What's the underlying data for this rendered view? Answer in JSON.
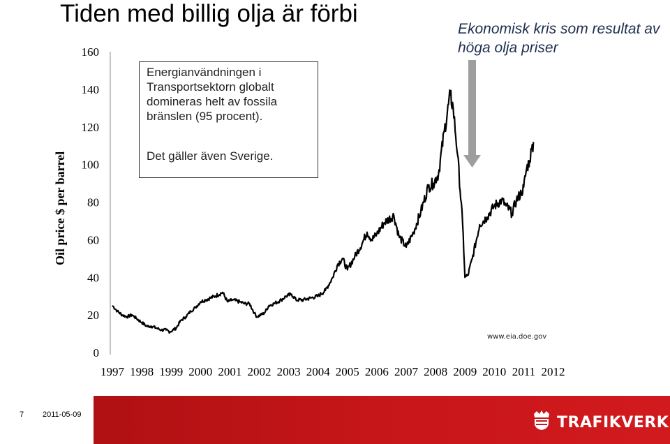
{
  "slide": {
    "title": "Tiden med billig olja är förbi",
    "callout": "Ekonomisk kris som resultat av höga olja priser",
    "annotation_p1": "Energianvändningen i Transportsektorn globalt domineras helt av fossila bränslen (95 procent).",
    "annotation_p2": "Det gäller även Sverige.",
    "source": "www.eia.doe.gov",
    "page_number": "7",
    "date": "2011-05-09",
    "logo_text": "TRAFIKVERKET",
    "logo_icon": "crown-shield-icon",
    "colors": {
      "line": "#000000",
      "arrow": "#999999",
      "footer": "#c8161a"
    }
  },
  "chart_data": {
    "type": "line",
    "ylabel": "Oil price $ per barrel",
    "xlabel": "",
    "ylim": [
      0,
      160
    ],
    "yticks": [
      "0",
      "20",
      "40",
      "60",
      "80",
      "100",
      "120",
      "140",
      "160"
    ],
    "categories": [
      "1997",
      "1998",
      "1999",
      "2000",
      "2001",
      "2002",
      "2003",
      "2004",
      "2005",
      "2006",
      "2007",
      "2008",
      "2009",
      "2010",
      "2011",
      "2012"
    ],
    "grid": false,
    "x": [
      1997.0,
      1997.17,
      1997.33,
      1997.5,
      1997.67,
      1997.83,
      1998.0,
      1998.17,
      1998.33,
      1998.5,
      1998.67,
      1998.83,
      1998.96,
      1999.17,
      1999.33,
      1999.5,
      1999.67,
      1999.83,
      2000.0,
      2000.17,
      2000.33,
      2000.5,
      2000.75,
      2000.92,
      2001.08,
      2001.33,
      2001.5,
      2001.67,
      2001.83,
      2001.92,
      2002.17,
      2002.33,
      2002.5,
      2002.75,
      2002.92,
      2003.1,
      2003.25,
      2003.5,
      2003.75,
      2004.0,
      2004.25,
      2004.5,
      2004.67,
      2004.83,
      2005.0,
      2005.25,
      2005.5,
      2005.67,
      2005.83,
      2006.0,
      2006.25,
      2006.58,
      2006.75,
      2007.0,
      2007.25,
      2007.5,
      2007.75,
      2007.92,
      2008.1,
      2008.3,
      2008.5,
      2008.6,
      2008.75,
      2008.92,
      2009.0,
      2009.1,
      2009.25,
      2009.5,
      2009.75,
      2010.0,
      2010.25,
      2010.4,
      2010.6,
      2010.75,
      2010.92,
      2011.0,
      2011.1,
      2011.2,
      2011.27,
      2011.33
    ],
    "values": [
      25,
      22,
      20,
      19,
      20,
      18,
      16,
      14,
      14,
      13,
      12,
      12,
      11,
      13,
      17,
      19,
      22,
      24,
      27,
      28,
      29,
      30,
      32,
      27,
      28,
      27,
      26,
      26,
      21,
      19,
      21,
      25,
      26,
      28,
      30,
      31,
      28,
      28,
      29,
      30,
      33,
      40,
      47,
      50,
      44,
      51,
      58,
      64,
      60,
      63,
      69,
      73,
      62,
      56,
      64,
      75,
      88,
      90,
      95,
      118,
      137,
      130,
      105,
      69,
      40,
      41,
      50,
      68,
      72,
      78,
      81,
      78,
      74,
      81,
      85,
      88,
      98,
      102,
      108,
      112
    ]
  }
}
